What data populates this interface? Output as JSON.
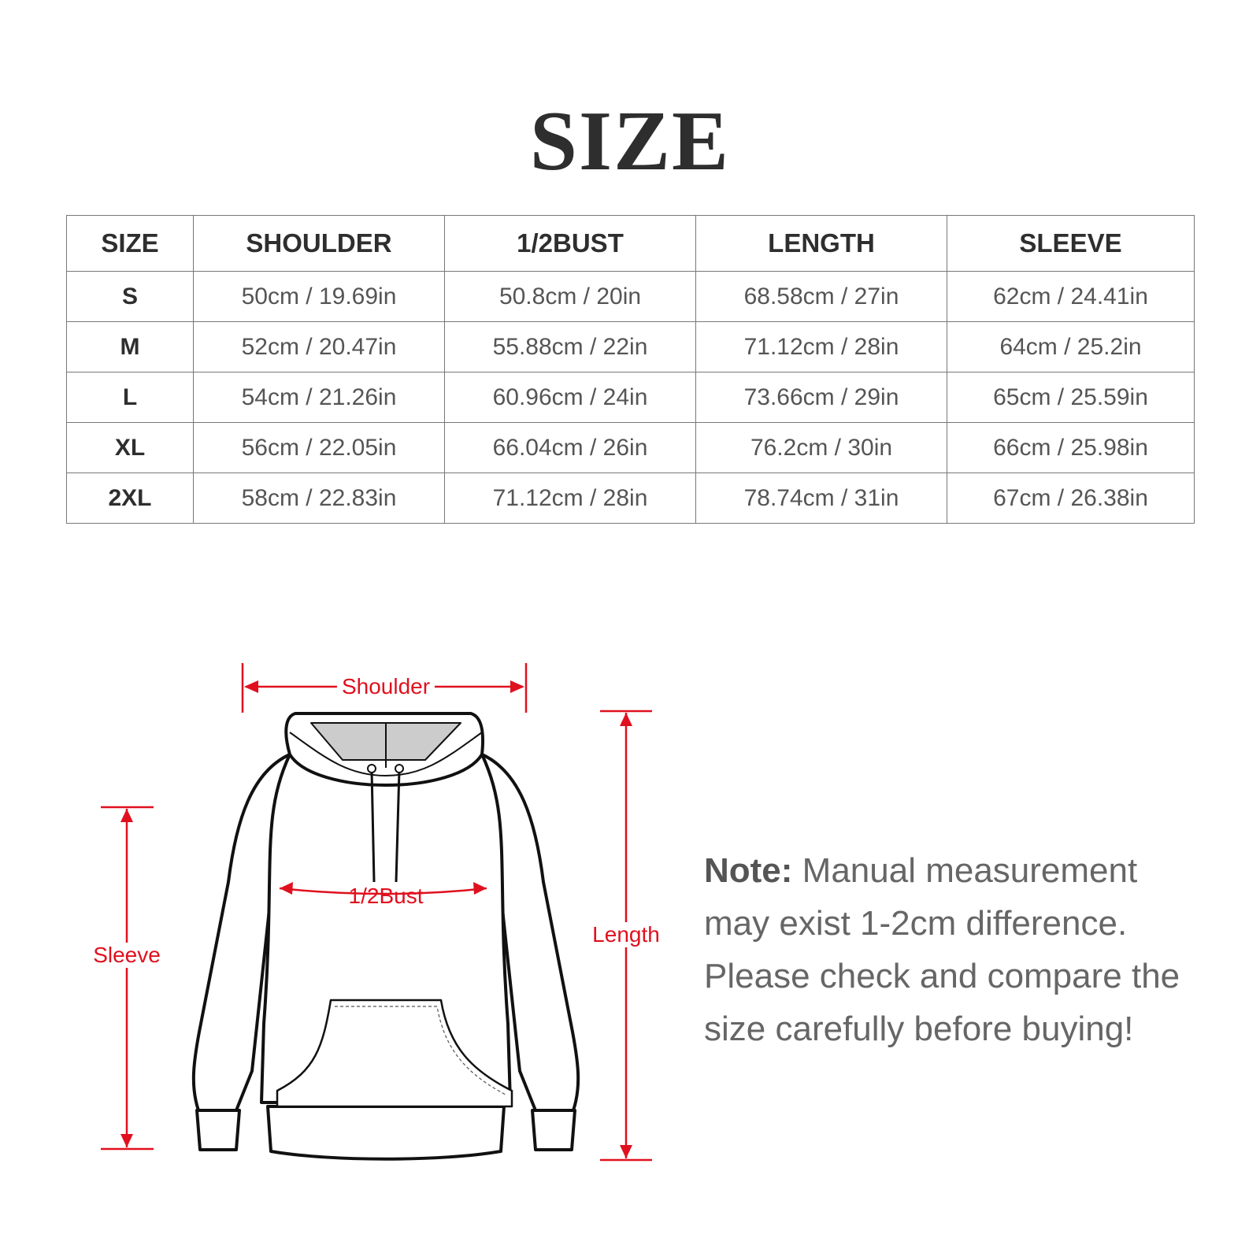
{
  "title": "SIZE",
  "table": {
    "headers": [
      "SIZE",
      "SHOULDER",
      "1/2BUST",
      "LENGTH",
      "SLEEVE"
    ],
    "rows": [
      [
        "S",
        "50cm / 19.69in",
        "50.8cm / 20in",
        "68.58cm / 27in",
        "62cm / 24.41in"
      ],
      [
        "M",
        "52cm / 20.47in",
        "55.88cm / 22in",
        "71.12cm / 28in",
        "64cm / 25.2in"
      ],
      [
        "L",
        "54cm / 21.26in",
        "60.96cm / 24in",
        "73.66cm / 29in",
        "65cm / 25.59in"
      ],
      [
        "XL",
        "56cm / 22.05in",
        "66.04cm / 26in",
        "76.2cm / 30in",
        "66cm / 25.98in"
      ],
      [
        "2XL",
        "58cm / 22.83in",
        "71.12cm / 28in",
        "78.74cm / 31in",
        "67cm / 26.38in"
      ]
    ]
  },
  "diagram": {
    "labels": {
      "shoulder": "Shoulder",
      "bust": "1/2Bust",
      "length": "Length",
      "sleeve": "Sleeve"
    },
    "accent_color": "#e0101e"
  },
  "note": {
    "label": "Note:",
    "text": " Manual measurement may exist 1-2cm difference. Please check and compare the size carefully before buying!"
  }
}
